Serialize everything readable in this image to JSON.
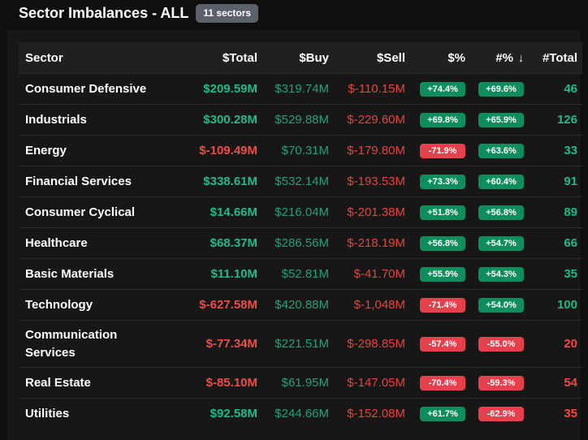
{
  "header": {
    "title": "Sector Imbalances - ALL",
    "badge": "11 sectors"
  },
  "table": {
    "columns": {
      "sector": "Sector",
      "total": "$Total",
      "buy": "$Buy",
      "sell": "$Sell",
      "pct": "$%",
      "count_pct": "#%",
      "count_total": "#Total"
    },
    "sort_icon": "arrow-down-icon",
    "rows": [
      {
        "sector": "Consumer Defensive",
        "total": "$209.59M",
        "total_sign": "pos",
        "buy": "$319.74M",
        "sell": "$-110.15M",
        "pct": "+74.4%",
        "pct_sign": "pos",
        "count_pct": "+69.6%",
        "count_pct_sign": "pos",
        "count_total": "46",
        "count_sign": "pos"
      },
      {
        "sector": "Industrials",
        "total": "$300.28M",
        "total_sign": "pos",
        "buy": "$529.88M",
        "sell": "$-229.60M",
        "pct": "+69.8%",
        "pct_sign": "pos",
        "count_pct": "+65.9%",
        "count_pct_sign": "pos",
        "count_total": "126",
        "count_sign": "pos"
      },
      {
        "sector": "Energy",
        "total": "$-109.49M",
        "total_sign": "neg",
        "buy": "$70.31M",
        "sell": "$-179.80M",
        "pct": "-71.9%",
        "pct_sign": "neg",
        "count_pct": "+63.6%",
        "count_pct_sign": "pos",
        "count_total": "33",
        "count_sign": "pos"
      },
      {
        "sector": "Financial Services",
        "total": "$338.61M",
        "total_sign": "pos",
        "buy": "$532.14M",
        "sell": "$-193.53M",
        "pct": "+73.3%",
        "pct_sign": "pos",
        "count_pct": "+60.4%",
        "count_pct_sign": "pos",
        "count_total": "91",
        "count_sign": "pos"
      },
      {
        "sector": "Consumer Cyclical",
        "total": "$14.66M",
        "total_sign": "pos",
        "buy": "$216.04M",
        "sell": "$-201.38M",
        "pct": "+51.8%",
        "pct_sign": "pos",
        "count_pct": "+56.8%",
        "count_pct_sign": "pos",
        "count_total": "89",
        "count_sign": "pos"
      },
      {
        "sector": "Healthcare",
        "total": "$68.37M",
        "total_sign": "pos",
        "buy": "$286.56M",
        "sell": "$-218.19M",
        "pct": "+56.8%",
        "pct_sign": "pos",
        "count_pct": "+54.7%",
        "count_pct_sign": "pos",
        "count_total": "66",
        "count_sign": "pos"
      },
      {
        "sector": "Basic Materials",
        "total": "$11.10M",
        "total_sign": "pos",
        "buy": "$52.81M",
        "sell": "$-41.70M",
        "pct": "+55.9%",
        "pct_sign": "pos",
        "count_pct": "+54.3%",
        "count_pct_sign": "pos",
        "count_total": "35",
        "count_sign": "pos"
      },
      {
        "sector": "Technology",
        "total": "$-627.58M",
        "total_sign": "neg",
        "buy": "$420.88M",
        "sell": "$-1,048M",
        "pct": "-71.4%",
        "pct_sign": "neg",
        "count_pct": "+54.0%",
        "count_pct_sign": "pos",
        "count_total": "100",
        "count_sign": "pos"
      },
      {
        "sector": "Communication Services",
        "total": "$-77.34M",
        "total_sign": "neg",
        "buy": "$221.51M",
        "sell": "$-298.85M",
        "pct": "-57.4%",
        "pct_sign": "neg",
        "count_pct": "-55.0%",
        "count_pct_sign": "neg",
        "count_total": "20",
        "count_sign": "neg",
        "tall": true
      },
      {
        "sector": "Real Estate",
        "total": "$-85.10M",
        "total_sign": "neg",
        "buy": "$61.95M",
        "sell": "$-147.05M",
        "pct": "-70.4%",
        "pct_sign": "neg",
        "count_pct": "-59.3%",
        "count_pct_sign": "neg",
        "count_total": "54",
        "count_sign": "neg"
      },
      {
        "sector": "Utilities",
        "total": "$92.58M",
        "total_sign": "pos",
        "buy": "$244.66M",
        "sell": "$-152.08M",
        "pct": "+61.7%",
        "pct_sign": "pos",
        "count_pct": "-62.9%",
        "count_pct_sign": "neg",
        "count_total": "35",
        "count_sign": "neg"
      }
    ]
  },
  "colors": {
    "positive": "#1fb98a",
    "negative": "#f04b46",
    "pill_positive": "#0e8e5d",
    "pill_negative": "#e5404c",
    "badge": "#5a6169"
  }
}
